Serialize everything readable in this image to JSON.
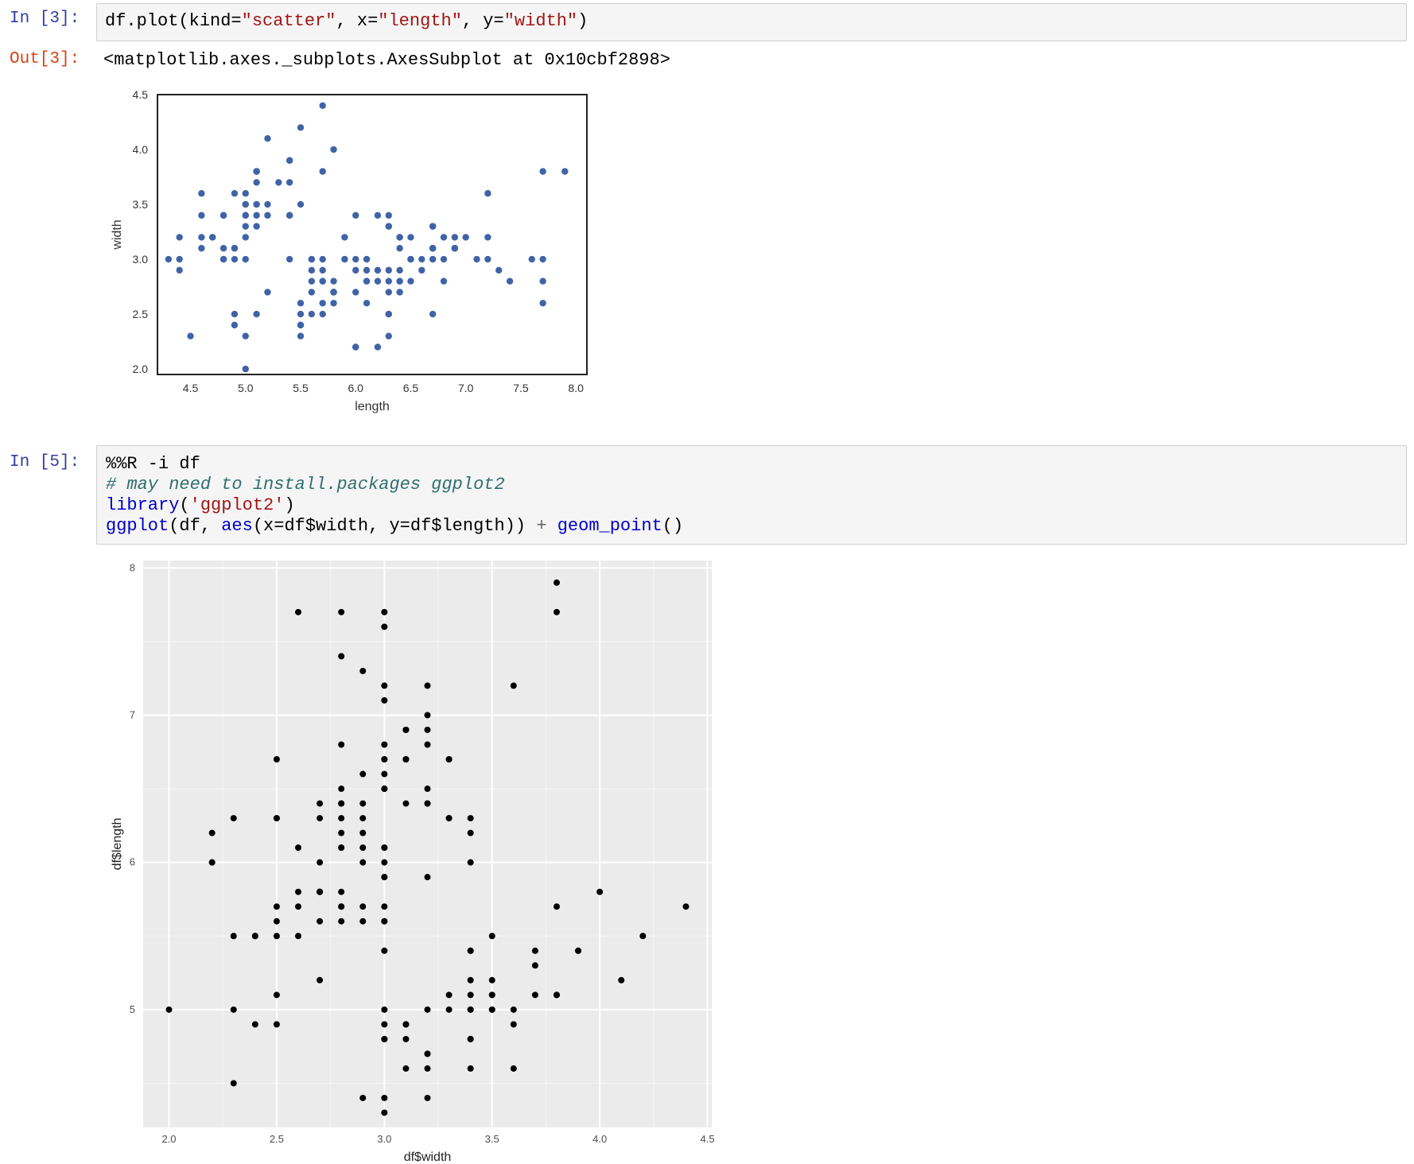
{
  "cells": {
    "cell1": {
      "prompt": "In [3]:",
      "code": {
        "p1": "df.plot(kind=",
        "s1": "\"scatter\"",
        "p2": ", x=",
        "s2": "\"length\"",
        "p3": ", y=",
        "s3": "\"width\"",
        "p4": ")"
      },
      "out_prompt": "Out[3]:",
      "out_text": "<matplotlib.axes._subplots.AxesSubplot at 0x10cbf2898>"
    },
    "cell2": {
      "prompt": "In [5]:",
      "line1": "%%R -i df",
      "line2": "# may need to install.packages ggplot2",
      "line3": {
        "fn": "library",
        "a": "(",
        "s": "'ggplot2'",
        "b": ")"
      },
      "line4": {
        "fn1": "ggplot",
        "t1": "(df, ",
        "fn2": "aes",
        "t2": "(x=df$width, y=df$length)) ",
        "op": "+",
        "t3": " ",
        "fn3": "geom_point",
        "t4": "()"
      }
    }
  },
  "colors": {
    "point_blue": "#4063a6",
    "ggplot_bg": "#ebebeb",
    "ggplot_grid": "#ffffff"
  },
  "chart_data": [
    {
      "type": "scatter",
      "library": "matplotlib",
      "title": "",
      "xlabel": "length",
      "ylabel": "width",
      "xlim": [
        4.2,
        8.1
      ],
      "ylim": [
        1.95,
        4.5
      ],
      "xticks": [
        "4.5",
        "5.0",
        "5.5",
        "6.0",
        "6.5",
        "7.0",
        "7.5",
        "8.0"
      ],
      "yticks": [
        "2.0",
        "2.5",
        "3.0",
        "3.5",
        "4.0",
        "4.5"
      ],
      "points": [
        [
          5.1,
          3.5
        ],
        [
          4.9,
          3.0
        ],
        [
          4.7,
          3.2
        ],
        [
          4.6,
          3.1
        ],
        [
          5.0,
          3.6
        ],
        [
          5.4,
          3.9
        ],
        [
          4.6,
          3.4
        ],
        [
          5.0,
          3.4
        ],
        [
          4.4,
          2.9
        ],
        [
          4.9,
          3.1
        ],
        [
          5.4,
          3.7
        ],
        [
          4.8,
          3.4
        ],
        [
          4.8,
          3.0
        ],
        [
          4.3,
          3.0
        ],
        [
          5.8,
          4.0
        ],
        [
          5.7,
          4.4
        ],
        [
          5.4,
          3.9
        ],
        [
          5.1,
          3.5
        ],
        [
          5.7,
          3.8
        ],
        [
          5.1,
          3.8
        ],
        [
          5.4,
          3.4
        ],
        [
          5.1,
          3.7
        ],
        [
          4.6,
          3.6
        ],
        [
          5.1,
          3.3
        ],
        [
          4.8,
          3.4
        ],
        [
          5.0,
          3.0
        ],
        [
          5.0,
          3.4
        ],
        [
          5.2,
          3.5
        ],
        [
          5.2,
          3.4
        ],
        [
          4.7,
          3.2
        ],
        [
          4.8,
          3.1
        ],
        [
          5.4,
          3.4
        ],
        [
          5.2,
          4.1
        ],
        [
          5.5,
          4.2
        ],
        [
          4.9,
          3.1
        ],
        [
          5.0,
          3.2
        ],
        [
          5.5,
          3.5
        ],
        [
          4.9,
          3.6
        ],
        [
          4.4,
          3.0
        ],
        [
          5.1,
          3.4
        ],
        [
          5.0,
          3.5
        ],
        [
          4.5,
          2.3
        ],
        [
          4.4,
          3.2
        ],
        [
          5.0,
          3.5
        ],
        [
          5.1,
          3.8
        ],
        [
          4.8,
          3.0
        ],
        [
          5.1,
          3.8
        ],
        [
          4.6,
          3.2
        ],
        [
          5.3,
          3.7
        ],
        [
          5.0,
          3.3
        ],
        [
          7.0,
          3.2
        ],
        [
          6.4,
          3.2
        ],
        [
          6.9,
          3.1
        ],
        [
          5.5,
          2.3
        ],
        [
          6.5,
          2.8
        ],
        [
          5.7,
          2.8
        ],
        [
          6.3,
          3.3
        ],
        [
          4.9,
          2.4
        ],
        [
          6.6,
          2.9
        ],
        [
          5.2,
          2.7
        ],
        [
          5.0,
          2.0
        ],
        [
          5.9,
          3.0
        ],
        [
          6.0,
          2.2
        ],
        [
          6.1,
          2.9
        ],
        [
          5.6,
          2.9
        ],
        [
          6.7,
          3.1
        ],
        [
          5.6,
          3.0
        ],
        [
          5.8,
          2.7
        ],
        [
          6.2,
          2.2
        ],
        [
          5.6,
          2.5
        ],
        [
          5.9,
          3.2
        ],
        [
          6.1,
          2.8
        ],
        [
          6.3,
          2.5
        ],
        [
          6.1,
          2.8
        ],
        [
          6.4,
          2.9
        ],
        [
          6.6,
          3.0
        ],
        [
          6.8,
          2.8
        ],
        [
          6.7,
          3.0
        ],
        [
          6.0,
          2.9
        ],
        [
          5.7,
          2.6
        ],
        [
          5.5,
          2.4
        ],
        [
          5.5,
          2.4
        ],
        [
          5.8,
          2.7
        ],
        [
          6.0,
          2.7
        ],
        [
          5.4,
          3.0
        ],
        [
          6.0,
          3.4
        ],
        [
          6.7,
          3.1
        ],
        [
          6.3,
          2.3
        ],
        [
          5.6,
          3.0
        ],
        [
          5.5,
          2.5
        ],
        [
          5.5,
          2.6
        ],
        [
          6.1,
          3.0
        ],
        [
          5.8,
          2.6
        ],
        [
          5.0,
          2.3
        ],
        [
          5.6,
          2.7
        ],
        [
          5.7,
          3.0
        ],
        [
          5.7,
          2.9
        ],
        [
          6.2,
          2.9
        ],
        [
          5.1,
          2.5
        ],
        [
          5.7,
          2.8
        ],
        [
          6.3,
          3.3
        ],
        [
          5.8,
          2.7
        ],
        [
          7.1,
          3.0
        ],
        [
          6.3,
          2.9
        ],
        [
          6.5,
          3.0
        ],
        [
          7.6,
          3.0
        ],
        [
          4.9,
          2.5
        ],
        [
          7.3,
          2.9
        ],
        [
          6.7,
          2.5
        ],
        [
          7.2,
          3.6
        ],
        [
          6.5,
          3.2
        ],
        [
          6.4,
          2.7
        ],
        [
          6.8,
          3.0
        ],
        [
          5.7,
          2.5
        ],
        [
          5.8,
          2.8
        ],
        [
          6.4,
          3.2
        ],
        [
          6.5,
          3.0
        ],
        [
          7.7,
          3.8
        ],
        [
          7.7,
          2.6
        ],
        [
          6.0,
          2.2
        ],
        [
          6.9,
          3.2
        ],
        [
          5.6,
          2.8
        ],
        [
          7.7,
          2.8
        ],
        [
          6.3,
          2.7
        ],
        [
          6.7,
          3.3
        ],
        [
          7.2,
          3.2
        ],
        [
          6.2,
          2.8
        ],
        [
          6.1,
          3.0
        ],
        [
          6.4,
          2.8
        ],
        [
          7.2,
          3.0
        ],
        [
          7.4,
          2.8
        ],
        [
          7.9,
          3.8
        ],
        [
          6.4,
          2.8
        ],
        [
          6.3,
          2.8
        ],
        [
          6.1,
          2.6
        ],
        [
          7.7,
          3.0
        ],
        [
          6.3,
          3.4
        ],
        [
          6.4,
          3.1
        ],
        [
          6.0,
          3.0
        ],
        [
          6.9,
          3.1
        ],
        [
          6.7,
          3.1
        ],
        [
          6.9,
          3.1
        ],
        [
          5.8,
          2.7
        ],
        [
          6.8,
          3.2
        ],
        [
          6.7,
          3.3
        ],
        [
          6.7,
          3.0
        ],
        [
          6.3,
          2.5
        ],
        [
          6.5,
          3.0
        ],
        [
          6.2,
          3.4
        ],
        [
          5.9,
          3.0
        ]
      ]
    },
    {
      "type": "scatter",
      "library": "ggplot2",
      "title": "",
      "xlabel": "df$width",
      "ylabel": "df$length",
      "xlim": [
        1.88,
        4.52
      ],
      "ylim": [
        4.2,
        8.05
      ],
      "xticks": [
        "2.0",
        "2.5",
        "3.0",
        "3.5",
        "4.0",
        "4.5"
      ],
      "yticks": [
        "5",
        "6",
        "7",
        "8"
      ],
      "note": "same points as matplotlib chart with axes swapped"
    }
  ]
}
